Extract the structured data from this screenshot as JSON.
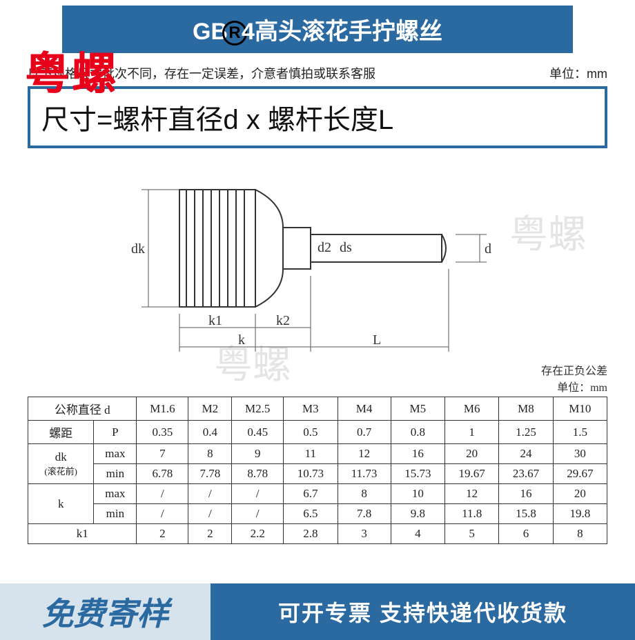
{
  "header": {
    "title_prefix": "GB",
    "title_mid": "4高头滚花手拧螺丝",
    "reg_symbol": "R"
  },
  "brand_stamp": "粤螺",
  "notice": {
    "left": "以下规格尺寸批次不同，存在一定误差，介意者慎拍或联系客服",
    "right": "单位：mm"
  },
  "formula": "尺寸=螺杆直径d x 螺杆长度L",
  "watermarks": {
    "w1": "粤螺",
    "w2": "粤螺"
  },
  "diagram": {
    "labels": {
      "dk": "dk",
      "d2": "d2",
      "ds": "ds",
      "d": "d",
      "k1": "k1",
      "k2": "k2",
      "k": "k",
      "L": "L"
    }
  },
  "tolerance": {
    "line1": "存在正负公差",
    "line2": "单位：mm"
  },
  "table": {
    "row_headers": {
      "nominal_d": "公称直径 d",
      "pitch": "螺距",
      "pitch_sym": "P",
      "dk": "dk",
      "dk_note": "(滚花前)",
      "k": "k",
      "k1": "k1",
      "max": "max",
      "min": "min"
    },
    "sizes": [
      "M1.6",
      "M2",
      "M2.5",
      "M3",
      "M4",
      "M5",
      "M6",
      "M8",
      "M10"
    ],
    "pitch": [
      "0.35",
      "0.4",
      "0.45",
      "0.5",
      "0.7",
      "0.8",
      "1",
      "1.25",
      "1.5"
    ],
    "dk_max": [
      "7",
      "8",
      "9",
      "11",
      "12",
      "16",
      "20",
      "24",
      "30"
    ],
    "dk_min": [
      "6.78",
      "7.78",
      "8.78",
      "10.73",
      "11.73",
      "15.73",
      "19.67",
      "23.67",
      "29.67"
    ],
    "k_max": [
      "/",
      "/",
      "/",
      "6.7",
      "8",
      "10",
      "12",
      "16",
      "20"
    ],
    "k_min": [
      "/",
      "/",
      "/",
      "6.5",
      "7.8",
      "9.8",
      "11.8",
      "15.8",
      "19.8"
    ],
    "k1": [
      "2",
      "2",
      "2.2",
      "2.8",
      "3",
      "4",
      "5",
      "6",
      "8"
    ],
    "bold_col_index": 5
  },
  "footer": {
    "left": "免费寄样",
    "right": "可开专票 支持快递代收货款"
  },
  "colors": {
    "brand_blue": "#2b6aa0",
    "stamp_red": "#e8001a",
    "footer_left_bg": "#d6e3ec"
  }
}
